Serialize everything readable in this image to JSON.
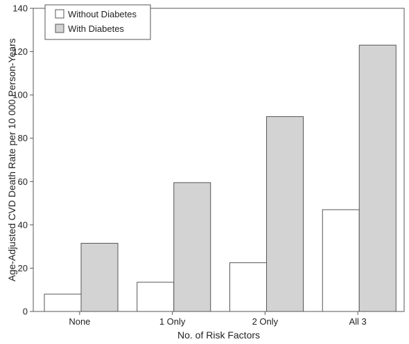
{
  "chart_data": {
    "type": "bar",
    "categories": [
      "None",
      "1 Only",
      "2 Only",
      "All 3"
    ],
    "series": [
      {
        "name": "Without Diabetes",
        "values": [
          8,
          13.5,
          22.5,
          47
        ],
        "color": "#ffffff"
      },
      {
        "name": "With Diabetes",
        "values": [
          31.5,
          59.5,
          90,
          123
        ],
        "color": "#d3d3d3"
      }
    ],
    "xlabel": "No. of Risk Factors",
    "ylabel": "Age-Adjusted CVD Death Rate per 10 000 Person-Years",
    "ylim": [
      0,
      140
    ],
    "yticks": [
      0,
      20,
      40,
      60,
      80,
      100,
      120,
      140
    ],
    "grid": false,
    "legend_position": "top-left",
    "bar_edge_color": "#555555"
  }
}
